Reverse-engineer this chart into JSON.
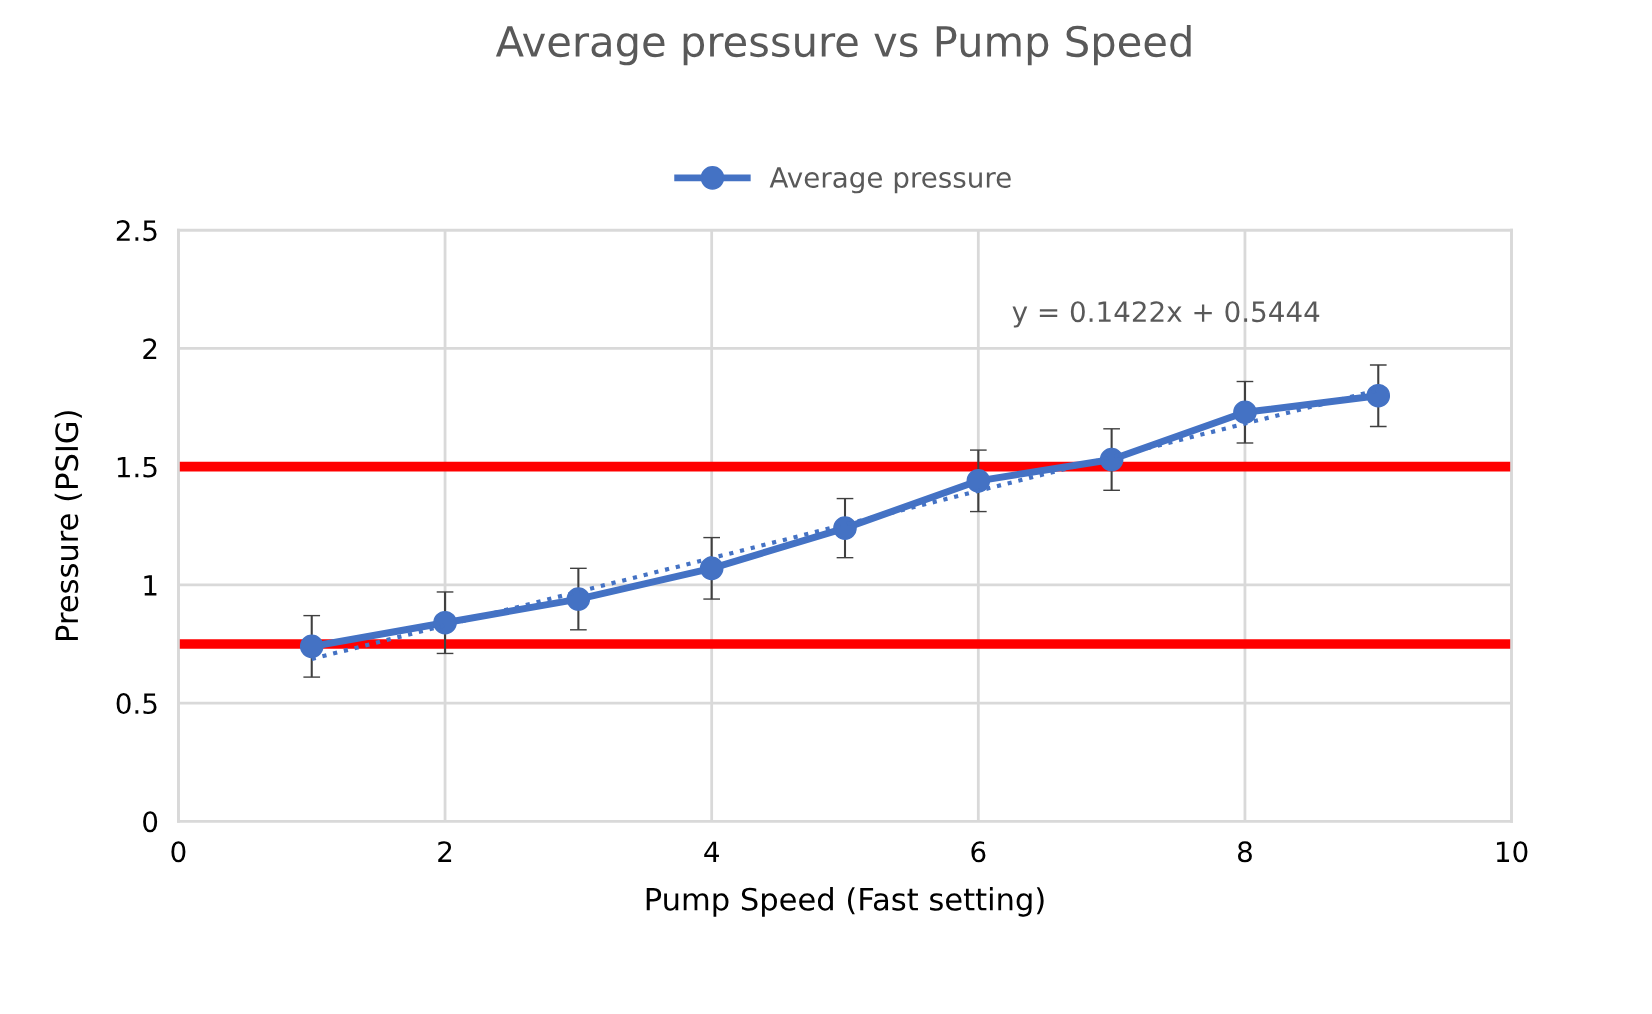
{
  "chart_data": {
    "type": "line",
    "title": "Average pressure vs Pump Speed",
    "xlabel": "Pump Speed (Fast setting)",
    "ylabel": "Pressure (PSIG)",
    "x": [
      1,
      2,
      3,
      4,
      5,
      6,
      7,
      8,
      9
    ],
    "series": [
      {
        "name": "Average pressure",
        "color": "#4472c4",
        "values": [
          0.74,
          0.84,
          0.94,
          1.07,
          1.24,
          1.44,
          1.53,
          1.73,
          1.8
        ],
        "errors": [
          0.13,
          0.13,
          0.13,
          0.13,
          0.125,
          0.13,
          0.13,
          0.13,
          0.13
        ],
        "marker": "circle",
        "line_style": "solid"
      },
      {
        "type": "line",
        "color": "#4472c4",
        "x": [
          1,
          9
        ],
        "values": [
          0.6866,
          1.8242
        ],
        "marker": "none",
        "line_style": "dotted"
      }
    ],
    "xlim": [
      0,
      10
    ],
    "xticks": [
      0,
      2,
      4,
      6,
      8,
      10
    ],
    "ylim": [
      0,
      2.5
    ],
    "yticks": [
      0,
      0.5,
      1,
      1.5,
      2,
      2.5
    ],
    "grid": true,
    "legend": "top",
    "ref_lines": [
      {
        "axis": "y",
        "value": 1.5,
        "color": "#ff0000"
      },
      {
        "axis": "y",
        "value": 0.75,
        "color": "#ff0000"
      }
    ],
    "annotations": [
      "y = 0.1422x + 0.5444"
    ]
  }
}
